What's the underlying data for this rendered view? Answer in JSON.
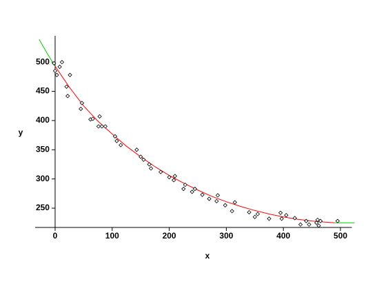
{
  "chart_data": {
    "type": "scatter",
    "x_label": "x",
    "y_label": "y",
    "xlim": [
      -35,
      520
    ],
    "ylim": [
      217,
      545
    ],
    "xticks": [
      0,
      100,
      200,
      300,
      400,
      500
    ],
    "yticks": [
      250,
      300,
      350,
      400,
      450,
      500
    ],
    "grid": false,
    "points": {
      "color": "#000000",
      "x": [
        -2,
        0,
        3,
        8,
        12,
        20,
        22,
        26,
        45,
        47,
        62,
        66,
        76,
        78,
        82,
        88,
        105,
        108,
        115,
        143,
        150,
        155,
        165,
        168,
        185,
        200,
        208,
        210,
        225,
        228,
        240,
        245,
        258,
        270,
        283,
        285,
        298,
        310,
        315,
        340,
        350,
        355,
        375,
        395,
        397,
        405,
        420,
        430,
        440,
        445,
        458,
        460,
        462,
        465,
        495
      ],
      "values": [
        498,
        485,
        478,
        492,
        500,
        458,
        442,
        478,
        420,
        430,
        402,
        403,
        390,
        407,
        390,
        390,
        373,
        365,
        358,
        350,
        338,
        333,
        325,
        318,
        312,
        303,
        298,
        305,
        283,
        290,
        278,
        283,
        273,
        266,
        262,
        272,
        255,
        245,
        260,
        243,
        235,
        240,
        232,
        242,
        232,
        238,
        233,
        222,
        228,
        222,
        225,
        230,
        220,
        228,
        228
      ]
    },
    "curves": [
      {
        "color": "#ff0000",
        "x": [
          0,
          25,
          50,
          75,
          100,
          125,
          150,
          175,
          200,
          225,
          250,
          275,
          300,
          325,
          350,
          375,
          400,
          425,
          450,
          475,
          490
        ],
        "values": [
          493,
          457,
          425,
          399,
          377,
          356,
          338,
          321,
          306,
          293,
          281,
          270,
          261,
          253,
          246,
          240,
          235,
          231,
          228,
          226,
          225
        ]
      },
      {
        "color": "#00cc00",
        "x": [
          -28,
          -14,
          0
        ],
        "values": [
          539,
          515,
          493
        ]
      },
      {
        "color": "#00cc00",
        "x": [
          490,
          505,
          525
        ],
        "values": [
          225,
          225,
          225
        ]
      }
    ]
  }
}
